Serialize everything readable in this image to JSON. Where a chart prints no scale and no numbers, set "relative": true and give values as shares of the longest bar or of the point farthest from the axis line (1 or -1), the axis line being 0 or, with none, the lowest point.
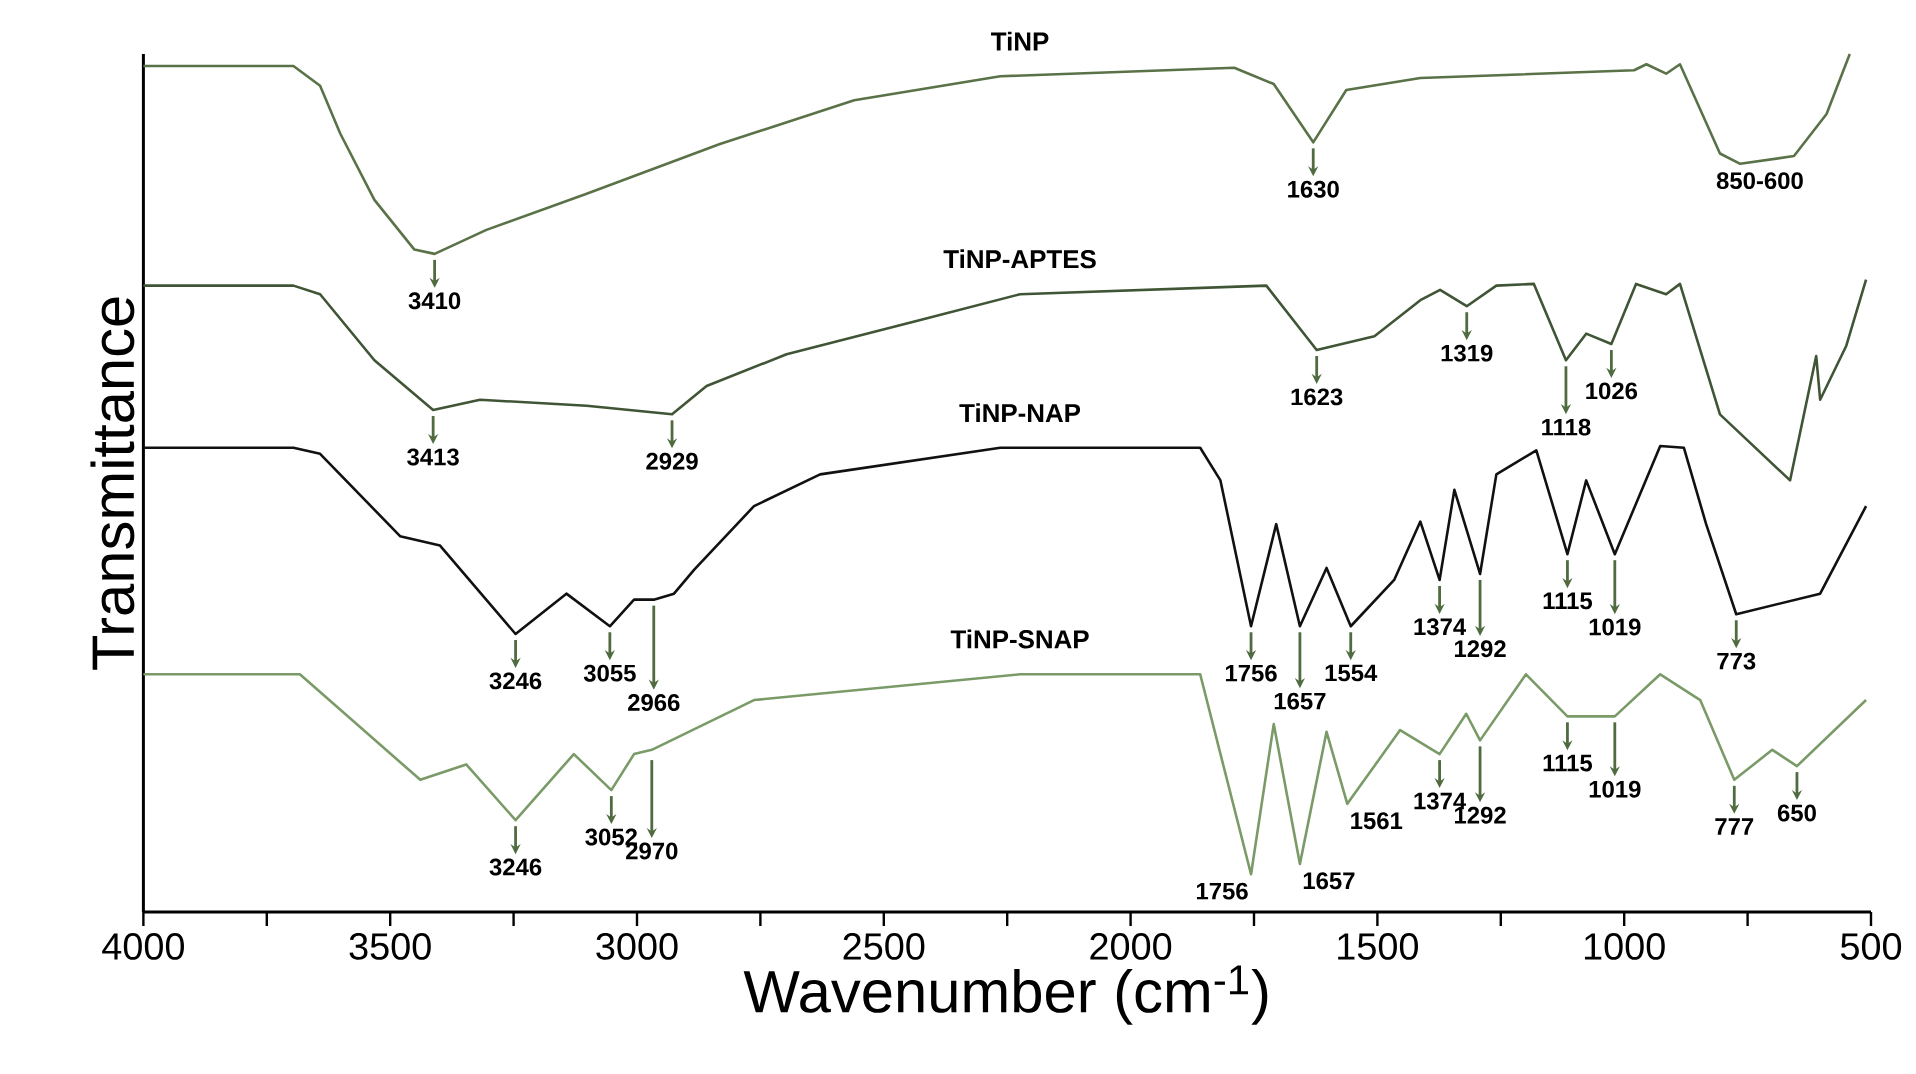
{
  "chart_data": {
    "type": "line",
    "relative": true,
    "xlabel": "Wavenumber (cm$^{-1}$)",
    "ylabel": "Transmittance",
    "xlim": [
      4000,
      500
    ],
    "xticks": [
      4000,
      {
        "value": 3750,
        "label": null
      },
      3500,
      {
        "value": 3250,
        "label": null
      },
      3000,
      {
        "value": 2750,
        "label": null
      },
      2500,
      {
        "value": 2250,
        "label": null
      },
      2000,
      {
        "value": 1750,
        "label": null
      },
      1500,
      {
        "value": 1250,
        "label": null
      },
      1000,
      {
        "value": 750,
        "label": null
      },
      500
    ],
    "tick_labels": "x",
    "grid": false,
    "marker": "none",
    "line_style": "solid",
    "series": [
      {
        "name": "TiNP",
        "color": "#5a7247",
        "x": [
          4000,
          3696,
          3642,
          3601,
          3532,
          3451,
          3410,
          3305,
          3102,
          2832,
          2560,
          2264,
          1790,
          1710,
          1630,
          1563,
          1413,
          980,
          955,
          915,
          887,
          806,
          765,
          656,
          590,
          543
        ],
        "values": [
          0.986,
          0.986,
          0.963,
          0.907,
          0.83,
          0.772,
          0.767,
          0.795,
          0.837,
          0.895,
          0.946,
          0.974,
          0.984,
          0.965,
          0.897,
          0.958,
          0.972,
          0.981,
          0.988,
          0.977,
          0.988,
          0.884,
          0.872,
          0.881,
          0.93,
          1.0
        ]
      },
      {
        "name": "TiNP-APTES",
        "color": "#3f5535",
        "x": [
          4000,
          3696,
          3642,
          3532,
          3413,
          3318,
          3102,
          2929,
          2859,
          2697,
          2426,
          2224,
          1725,
          1623,
          1506,
          1413,
          1373,
          1319,
          1259,
          1183,
          1118,
          1077,
          1026,
          976,
          915,
          887,
          806,
          664,
          611,
          603,
          550,
          510
        ],
        "values": [
          0.73,
          0.73,
          0.72,
          0.643,
          0.585,
          0.597,
          0.59,
          0.58,
          0.613,
          0.65,
          0.69,
          0.72,
          0.73,
          0.655,
          0.671,
          0.713,
          0.725,
          0.706,
          0.73,
          0.732,
          0.643,
          0.674,
          0.662,
          0.732,
          0.72,
          0.732,
          0.58,
          0.503,
          0.648,
          0.597,
          0.66,
          0.737
        ]
      },
      {
        "name": "TiNP-NAP",
        "color": "#111111",
        "x": [
          4000,
          3696,
          3642,
          3480,
          3399,
          3246,
          3143,
          3055,
          3006,
          2966,
          2925,
          2884,
          2763,
          2629,
          2264,
          1859,
          1818,
          1756,
          1705,
          1657,
          1603,
          1554,
          1466,
          1413,
          1374,
          1344,
          1292,
          1259,
          1178,
          1115,
          1077,
          1019,
          927,
          879,
          834,
          773,
          603,
          510
        ],
        "values": [
          0.541,
          0.541,
          0.534,
          0.438,
          0.427,
          0.324,
          0.371,
          0.333,
          0.364,
          0.364,
          0.371,
          0.399,
          0.473,
          0.51,
          0.541,
          0.541,
          0.503,
          0.333,
          0.452,
          0.333,
          0.401,
          0.333,
          0.387,
          0.455,
          0.387,
          0.492,
          0.394,
          0.51,
          0.538,
          0.417,
          0.503,
          0.417,
          0.543,
          0.541,
          0.452,
          0.347,
          0.371,
          0.473
        ]
      },
      {
        "name": "TiNP-SNAP",
        "color": "#7a9a68",
        "x": [
          4000,
          3683,
          3439,
          3346,
          3246,
          3128,
          3052,
          3006,
          2970,
          2763,
          2224,
          1859,
          1756,
          1710,
          1657,
          1603,
          1561,
          1454,
          1374,
          1320,
          1292,
          1199,
          1115,
          1019,
          927,
          846,
          777,
          700,
          650,
          510
        ],
        "values": [
          0.277,
          0.277,
          0.154,
          0.172,
          0.107,
          0.184,
          0.142,
          0.184,
          0.189,
          0.247,
          0.277,
          0.277,
          0.044,
          0.219,
          0.056,
          0.21,
          0.126,
          0.212,
          0.184,
          0.231,
          0.2,
          0.277,
          0.228,
          0.228,
          0.277,
          0.247,
          0.154,
          0.189,
          0.17,
          0.247
        ]
      }
    ],
    "annotations": [
      {
        "text": "3410",
        "x": 3410,
        "y": 0.767
      },
      {
        "text": "1630",
        "x": 1630,
        "y": 0.897
      },
      {
        "text": "850-600",
        "x": 725,
        "y": 0.872
      },
      {
        "text": "3413",
        "x": 3413,
        "y": 0.585
      },
      {
        "text": "2929",
        "x": 2929,
        "y": 0.58
      },
      {
        "text": "1623",
        "x": 1623,
        "y": 0.655
      },
      {
        "text": "1319",
        "x": 1319,
        "y": 0.706
      },
      {
        "text": "1118",
        "x": 1118,
        "y": 0.643
      },
      {
        "text": "1026",
        "x": 1026,
        "y": 0.662
      },
      {
        "text": "3246",
        "x": 3246,
        "y": 0.324
      },
      {
        "text": "3055",
        "x": 3055,
        "y": 0.333
      },
      {
        "text": "2966",
        "x": 2966,
        "y": 0.364
      },
      {
        "text": "1756",
        "x": 1756,
        "y": 0.333
      },
      {
        "text": "1657",
        "x": 1657,
        "y": 0.333
      },
      {
        "text": "1554",
        "x": 1554,
        "y": 0.333
      },
      {
        "text": "1374",
        "x": 1374,
        "y": 0.387
      },
      {
        "text": "1292",
        "x": 1292,
        "y": 0.394
      },
      {
        "text": "1115",
        "x": 1115,
        "y": 0.417
      },
      {
        "text": "1019",
        "x": 1019,
        "y": 0.417
      },
      {
        "text": "773",
        "x": 773,
        "y": 0.347
      },
      {
        "text": "3246",
        "x": 3246,
        "y": 0.107
      },
      {
        "text": "3052",
        "x": 3052,
        "y": 0.142
      },
      {
        "text": "2970",
        "x": 2970,
        "y": 0.184
      },
      {
        "text": "1756",
        "x": 1756,
        "y": 0.044
      },
      {
        "text": "1657",
        "x": 1657,
        "y": 0.056
      },
      {
        "text": "1561",
        "x": 1561,
        "y": 0.126
      },
      {
        "text": "1374",
        "x": 1374,
        "y": 0.184
      },
      {
        "text": "1292",
        "x": 1292,
        "y": 0.2
      },
      {
        "text": "1115",
        "x": 1115,
        "y": 0.228
      },
      {
        "text": "1019",
        "x": 1019,
        "y": 0.228
      },
      {
        "text": "777",
        "x": 777,
        "y": 0.154
      },
      {
        "text": "650",
        "x": 650,
        "y": 0.17
      }
    ]
  }
}
